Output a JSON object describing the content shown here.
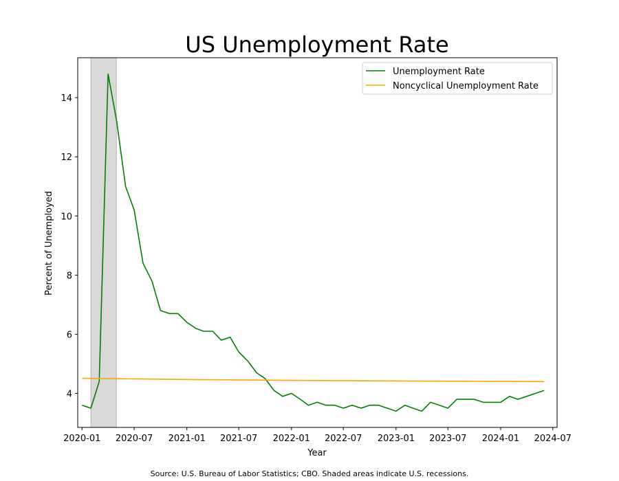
{
  "chart_data": {
    "type": "line",
    "title": "US Unemployment Rate",
    "xlabel": "Year",
    "ylabel": "Percent of Unemployed",
    "xlim": [
      "2019-12-17",
      "2024-07-16"
    ],
    "ylim": [
      2.85,
      15.35
    ],
    "x_ticks": [
      {
        "date": "2020-01-01",
        "label": "2020-01"
      },
      {
        "date": "2020-07-01",
        "label": "2020-07"
      },
      {
        "date": "2021-01-01",
        "label": "2021-01"
      },
      {
        "date": "2021-07-01",
        "label": "2021-07"
      },
      {
        "date": "2022-01-01",
        "label": "2022-01"
      },
      {
        "date": "2022-07-01",
        "label": "2022-07"
      },
      {
        "date": "2023-01-01",
        "label": "2023-01"
      },
      {
        "date": "2023-07-01",
        "label": "2023-07"
      },
      {
        "date": "2024-01-01",
        "label": "2024-01"
      },
      {
        "date": "2024-07-01",
        "label": "2024-07"
      }
    ],
    "y_ticks": [
      4,
      6,
      8,
      10,
      12,
      14
    ],
    "recession": {
      "start": "2020-02-01",
      "end": "2020-04-30",
      "color": "#d9d9d9"
    },
    "legend_position": "top-right",
    "series": [
      {
        "name": "Unemployment Rate",
        "color": "#008000",
        "points": [
          [
            "2020-01-01",
            3.6
          ],
          [
            "2020-02-01",
            3.5
          ],
          [
            "2020-03-01",
            4.4
          ],
          [
            "2020-04-01",
            14.8
          ],
          [
            "2020-05-01",
            13.2
          ],
          [
            "2020-06-01",
            11.0
          ],
          [
            "2020-07-01",
            10.2
          ],
          [
            "2020-08-01",
            8.4
          ],
          [
            "2020-09-01",
            7.8
          ],
          [
            "2020-10-01",
            6.8
          ],
          [
            "2020-11-01",
            6.7
          ],
          [
            "2020-12-01",
            6.7
          ],
          [
            "2021-01-01",
            6.4
          ],
          [
            "2021-02-01",
            6.2
          ],
          [
            "2021-03-01",
            6.1
          ],
          [
            "2021-04-01",
            6.1
          ],
          [
            "2021-05-01",
            5.8
          ],
          [
            "2021-06-01",
            5.9
          ],
          [
            "2021-07-01",
            5.4
          ],
          [
            "2021-08-01",
            5.1
          ],
          [
            "2021-09-01",
            4.7
          ],
          [
            "2021-10-01",
            4.5
          ],
          [
            "2021-11-01",
            4.1
          ],
          [
            "2021-12-01",
            3.9
          ],
          [
            "2022-01-01",
            4.0
          ],
          [
            "2022-02-01",
            3.8
          ],
          [
            "2022-03-01",
            3.6
          ],
          [
            "2022-04-01",
            3.7
          ],
          [
            "2022-05-01",
            3.6
          ],
          [
            "2022-06-01",
            3.6
          ],
          [
            "2022-07-01",
            3.5
          ],
          [
            "2022-08-01",
            3.6
          ],
          [
            "2022-09-01",
            3.5
          ],
          [
            "2022-10-01",
            3.6
          ],
          [
            "2022-11-01",
            3.6
          ],
          [
            "2022-12-01",
            3.5
          ],
          [
            "2023-01-01",
            3.4
          ],
          [
            "2023-02-01",
            3.6
          ],
          [
            "2023-03-01",
            3.5
          ],
          [
            "2023-04-01",
            3.4
          ],
          [
            "2023-05-01",
            3.7
          ],
          [
            "2023-06-01",
            3.6
          ],
          [
            "2023-07-01",
            3.5
          ],
          [
            "2023-08-01",
            3.8
          ],
          [
            "2023-09-01",
            3.8
          ],
          [
            "2023-10-01",
            3.8
          ],
          [
            "2023-11-01",
            3.7
          ],
          [
            "2023-12-01",
            3.7
          ],
          [
            "2024-01-01",
            3.7
          ],
          [
            "2024-02-01",
            3.9
          ],
          [
            "2024-03-01",
            3.8
          ],
          [
            "2024-04-01",
            3.9
          ],
          [
            "2024-05-01",
            4.0
          ],
          [
            "2024-06-01",
            4.1
          ]
        ]
      },
      {
        "name": "Noncyclical Unemployment Rate",
        "color": "#FFA500",
        "points": [
          [
            "2020-01-01",
            4.51
          ],
          [
            "2021-01-01",
            4.47
          ],
          [
            "2022-01-01",
            4.44
          ],
          [
            "2023-01-01",
            4.42
          ],
          [
            "2024-06-01",
            4.4
          ]
        ]
      }
    ]
  },
  "source_note": "Source: U.S. Bureau of Labor Statistics; CBO. Shaded areas indicate U.S. recessions."
}
